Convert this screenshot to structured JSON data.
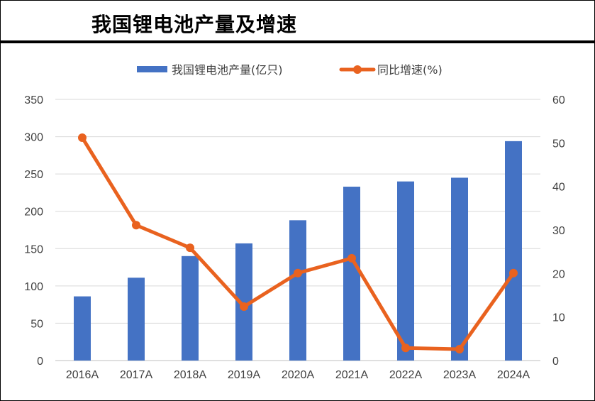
{
  "title": "我国锂电池产量及增速",
  "chart_data": {
    "type": "bar+line",
    "title": "我国锂电池产量及增速",
    "categories": [
      "2016A",
      "2017A",
      "2018A",
      "2019A",
      "2020A",
      "2021A",
      "2022A",
      "2023A",
      "2024A"
    ],
    "series": [
      {
        "name": "我国锂电池产量(亿只)",
        "type": "bar",
        "axis": "left",
        "color": "#4472C4",
        "values": [
          86,
          111,
          140,
          157,
          188,
          233,
          240,
          245,
          294
        ]
      },
      {
        "name": "同比增速(%)",
        "type": "line",
        "axis": "right",
        "color": "#E9621F",
        "values": [
          51.2,
          31.1,
          25.9,
          12.4,
          20.1,
          23.5,
          2.9,
          2.6,
          20.1
        ]
      }
    ],
    "left_axis": {
      "min": 0,
      "max": 350,
      "ticks": [
        0,
        50,
        100,
        150,
        200,
        250,
        300,
        350
      ]
    },
    "right_axis": {
      "min": 0,
      "max": 60,
      "ticks": [
        0,
        10,
        20,
        30,
        40,
        50,
        60
      ]
    },
    "grid": true,
    "legend": "top"
  }
}
